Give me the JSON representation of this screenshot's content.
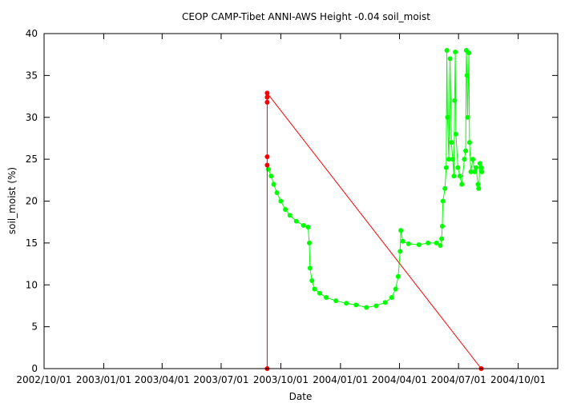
{
  "chart_data": {
    "type": "scatter",
    "title": "CEOP CAMP-Tibet ANNI-AWS Height -0.04 soil_moist",
    "xlabel": "Date",
    "ylabel": "soil_moist (%)",
    "xlim": [
      "2002-10-01",
      "2004-12-01"
    ],
    "ylim": [
      0,
      40
    ],
    "x_ticks": [
      "2002/10/01",
      "2003/01/01",
      "2003/04/01",
      "2003/07/01",
      "2003/10/01",
      "2004/01/01",
      "2004/04/01",
      "2004/07/01",
      "2004/10/01"
    ],
    "x_tick_dates": [
      "2002-10-01",
      "2003-01-01",
      "2003-04-01",
      "2003-07-01",
      "2003-10-01",
      "2004-01-01",
      "2004-04-01",
      "2004-07-01",
      "2004-10-01"
    ],
    "y_ticks": [
      0,
      5,
      10,
      15,
      20,
      25,
      30,
      35,
      40
    ],
    "grid": false,
    "colors": {
      "valid": "#00ff00",
      "flagged": "#ff0000",
      "axis": "#000000"
    },
    "series": [
      {
        "color": "#00ff00",
        "points": [
          [
            "2003-09-12",
            23.8
          ],
          [
            "2003-09-16",
            23.0
          ],
          [
            "2003-09-20",
            22.0
          ],
          [
            "2003-09-25",
            21.0
          ],
          [
            "2003-10-01",
            20.0
          ],
          [
            "2003-10-08",
            19.0
          ],
          [
            "2003-10-15",
            18.3
          ],
          [
            "2003-10-25",
            17.6
          ],
          [
            "2003-11-05",
            17.1
          ],
          [
            "2003-11-12",
            16.9
          ],
          [
            "2003-11-14",
            15.0
          ],
          [
            "2003-11-15",
            12.0
          ],
          [
            "2003-11-18",
            10.5
          ],
          [
            "2003-11-22",
            9.5
          ],
          [
            "2003-11-30",
            9.0
          ],
          [
            "2003-12-10",
            8.5
          ],
          [
            "2003-12-25",
            8.1
          ],
          [
            "2004-01-10",
            7.8
          ],
          [
            "2004-01-25",
            7.6
          ],
          [
            "2004-02-10",
            7.3
          ],
          [
            "2004-02-25",
            7.5
          ],
          [
            "2004-03-10",
            7.9
          ],
          [
            "2004-03-20",
            8.5
          ],
          [
            "2004-03-26",
            9.5
          ],
          [
            "2004-03-30",
            11.0
          ],
          [
            "2004-04-02",
            14.0
          ],
          [
            "2004-04-03",
            16.5
          ],
          [
            "2004-04-06",
            15.2
          ],
          [
            "2004-04-15",
            14.9
          ],
          [
            "2004-05-01",
            14.8
          ],
          [
            "2004-05-15",
            15.0
          ],
          [
            "2004-05-28",
            15.0
          ],
          [
            "2004-06-03",
            14.7
          ],
          [
            "2004-06-05",
            15.5
          ],
          [
            "2004-06-06",
            17.0
          ],
          [
            "2004-06-07",
            20.0
          ],
          [
            "2004-06-10",
            21.5
          ],
          [
            "2004-06-12",
            24.0
          ],
          [
            "2004-06-13",
            38.0
          ],
          [
            "2004-06-14",
            30.0
          ],
          [
            "2004-06-16",
            25.0
          ],
          [
            "2004-06-18",
            37.0
          ],
          [
            "2004-06-20",
            27.0
          ],
          [
            "2004-06-22",
            25.0
          ],
          [
            "2004-06-24",
            23.0
          ],
          [
            "2004-06-25",
            32.0
          ],
          [
            "2004-06-26",
            37.8
          ],
          [
            "2004-06-27",
            28.0
          ],
          [
            "2004-06-30",
            24.0
          ],
          [
            "2004-07-03",
            23.0
          ],
          [
            "2004-07-06",
            22.0
          ],
          [
            "2004-07-10",
            25.0
          ],
          [
            "2004-07-12",
            26.0
          ],
          [
            "2004-07-13",
            38.0
          ],
          [
            "2004-07-14",
            35.0
          ],
          [
            "2004-07-15",
            30.0
          ],
          [
            "2004-07-17",
            37.7
          ],
          [
            "2004-07-18",
            27.0
          ],
          [
            "2004-07-20",
            23.5
          ],
          [
            "2004-07-23",
            25.0
          ],
          [
            "2004-07-26",
            23.5
          ],
          [
            "2004-07-28",
            24.0
          ],
          [
            "2004-07-31",
            22.0
          ],
          [
            "2004-08-01",
            21.5
          ],
          [
            "2004-08-03",
            24.5
          ],
          [
            "2004-08-05",
            24.0
          ],
          [
            "2004-08-06",
            23.5
          ]
        ]
      },
      {
        "color": "#ff0000",
        "points": [
          [
            "2003-09-10",
            0
          ],
          [
            "2003-09-10",
            24.3
          ],
          [
            "2003-09-10",
            25.3
          ],
          [
            "2003-09-10",
            31.8
          ],
          [
            "2003-09-10",
            32.4
          ],
          [
            "2003-09-10",
            32.9
          ],
          [
            "2004-08-05",
            0
          ]
        ]
      }
    ]
  }
}
